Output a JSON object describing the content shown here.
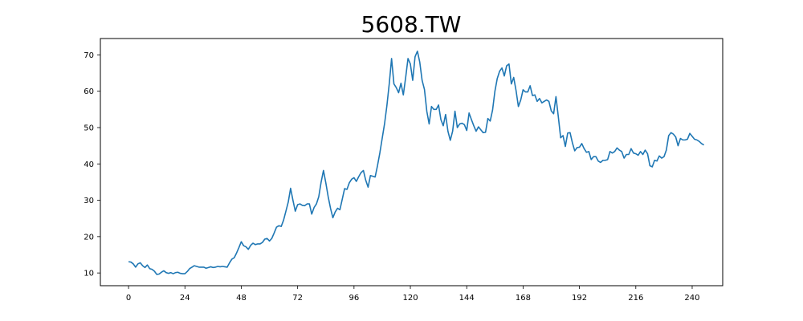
{
  "chart_data": {
    "type": "line",
    "title": "5608.TW",
    "xlabel": "",
    "ylabel": "",
    "xlim": [
      -12,
      253
    ],
    "ylim": [
      6.5,
      74.5
    ],
    "x_ticks": [
      0,
      24,
      48,
      72,
      96,
      120,
      144,
      168,
      192,
      216,
      240
    ],
    "y_ticks": [
      10,
      20,
      30,
      40,
      50,
      60,
      70
    ],
    "grid": false,
    "line_color": "#1f77b4",
    "series": [
      {
        "values": [
          13.1,
          13.0,
          12.5,
          11.6,
          12.5,
          12.8,
          12.0,
          11.5,
          12.2,
          11.2,
          11.0,
          10.5,
          9.6,
          9.7,
          10.2,
          10.6,
          10.1,
          9.9,
          10.1,
          9.8,
          10.1,
          10.2,
          9.9,
          9.8,
          9.8,
          10.4,
          11.2,
          11.6,
          12.0,
          11.8,
          11.6,
          11.6,
          11.6,
          11.3,
          11.5,
          11.7,
          11.5,
          11.6,
          11.8,
          11.7,
          11.8,
          11.7,
          11.6,
          12.8,
          13.8,
          14.2,
          15.5,
          17.0,
          18.6,
          17.5,
          17.2,
          16.5,
          17.6,
          18.2,
          17.8,
          18.0,
          18.0,
          18.4,
          19.3,
          19.5,
          18.8,
          19.5,
          21.0,
          22.6,
          23.0,
          22.8,
          24.5,
          27.0,
          29.5,
          33.3,
          30.0,
          27.0,
          28.8,
          29.0,
          28.6,
          28.5,
          29.0,
          29.0,
          26.2,
          28.0,
          29.0,
          31.0,
          35.0,
          38.2,
          34.8,
          31.0,
          27.8,
          25.2,
          26.8,
          27.8,
          27.4,
          30.3,
          33.2,
          33.0,
          34.8,
          35.8,
          36.2,
          35.2,
          36.5,
          37.6,
          38.2,
          35.5,
          33.6,
          36.8,
          36.6,
          36.4,
          39.5,
          43.0,
          47.0,
          51.0,
          56.0,
          62.0,
          69.0,
          62.0,
          61.0,
          59.6,
          62.2,
          59.0,
          63.8,
          69.0,
          67.5,
          63.0,
          69.5,
          71.0,
          68.0,
          63.0,
          60.5,
          54.5,
          51.0,
          55.8,
          55.0,
          55.0,
          56.2,
          52.2,
          50.5,
          53.6,
          49.0,
          46.5,
          49.0,
          54.5,
          50.0,
          51.0,
          51.2,
          50.8,
          49.2,
          54.0,
          52.2,
          50.5,
          49.0,
          50.2,
          49.4,
          48.6,
          48.7,
          52.5,
          51.8,
          54.8,
          60.0,
          63.5,
          65.5,
          66.4,
          64.2,
          67.0,
          67.5,
          62.0,
          63.8,
          60.2,
          55.8,
          57.6,
          60.4,
          59.8,
          59.8,
          61.5,
          58.8,
          59.0,
          57.2,
          58.0,
          56.8,
          57.2,
          57.6,
          57.2,
          54.6,
          53.8,
          58.5,
          53.0,
          47.2,
          47.8,
          44.8,
          48.5,
          48.6,
          45.8,
          43.6,
          44.5,
          44.6,
          45.6,
          44.2,
          43.2,
          43.4,
          41.2,
          42.0,
          42.0,
          40.8,
          40.4,
          41.0,
          41.0,
          41.2,
          43.4,
          43.0,
          43.4,
          44.4,
          43.8,
          43.4,
          41.6,
          42.6,
          42.6,
          44.2,
          43.0,
          42.8,
          42.4,
          43.4,
          42.6,
          43.8,
          42.8,
          39.5,
          39.2,
          41.0,
          40.8,
          42.2,
          41.6,
          42.0,
          43.8,
          47.8,
          48.6,
          48.2,
          47.4,
          45.0,
          47.0,
          46.6,
          46.6,
          46.8,
          48.4,
          47.6,
          46.8,
          46.6,
          46.2,
          45.6,
          45.2
        ]
      }
    ]
  }
}
